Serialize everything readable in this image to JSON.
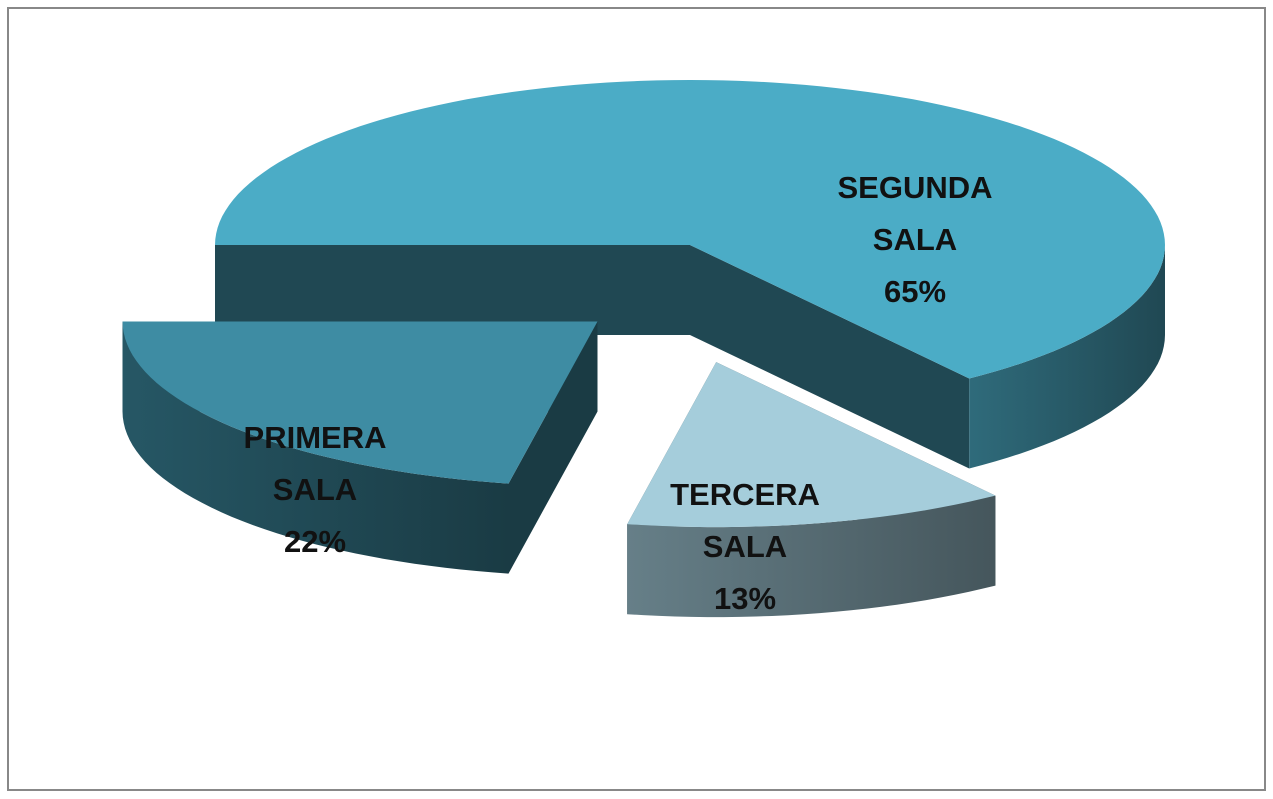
{
  "chart_data": {
    "type": "pie",
    "categories": [
      "SEGUNDA SALA",
      "TERCERA SALA",
      "PRIMERA SALA"
    ],
    "values": [
      65,
      13,
      22
    ],
    "value_labels": [
      "65%",
      "13%",
      "22%"
    ],
    "colors": [
      "#4BACC6",
      "#A5CDDB",
      "#3E8CA3"
    ]
  }
}
